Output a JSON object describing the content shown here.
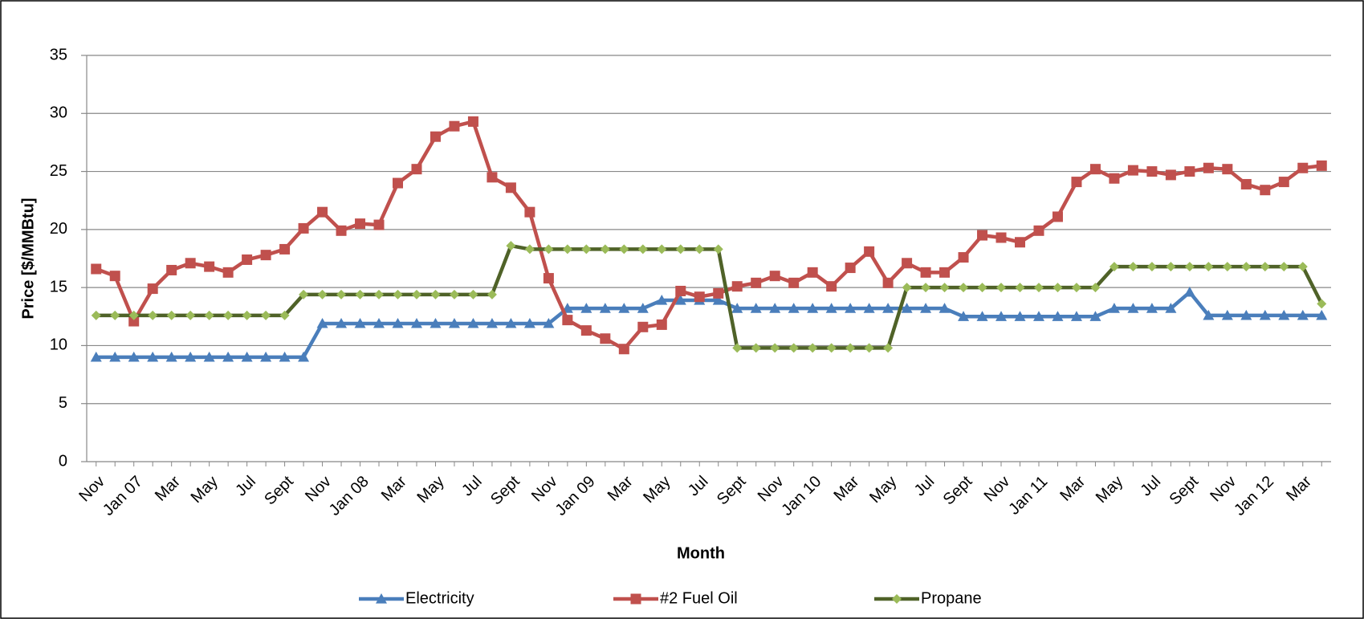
{
  "chart_data": {
    "type": "line",
    "x_label": "Month",
    "y_label": "Price [$/MMBtu]",
    "categories": [
      "Nov",
      null,
      "Jan 07",
      null,
      "Mar",
      null,
      "May",
      null,
      "Jul",
      null,
      "Sept",
      null,
      "Nov",
      null,
      "Jan 08",
      null,
      "Mar",
      null,
      "May",
      null,
      "Jul",
      null,
      "Sept",
      null,
      "Nov",
      null,
      "Jan 09",
      null,
      "Mar",
      null,
      "May",
      null,
      "Jul",
      null,
      "Sept",
      null,
      "Nov",
      null,
      "Jan 10",
      null,
      "Mar",
      null,
      "May",
      null,
      "Jul",
      null,
      "Sept",
      null,
      "Nov",
      null,
      "Jan 11",
      null,
      "Mar",
      null,
      "May",
      null,
      "Jul",
      null,
      "Sept",
      null,
      "Nov",
      null,
      "Jan 12",
      null,
      "Mar",
      null
    ],
    "series": [
      {
        "name": "Electricity",
        "color": "#4a7ebb",
        "marker": "triangle",
        "values": [
          9.0,
          9.0,
          9.0,
          9.0,
          9.0,
          9.0,
          9.0,
          9.0,
          9.0,
          9.0,
          9.0,
          9.0,
          11.9,
          11.9,
          11.9,
          11.9,
          11.9,
          11.9,
          11.9,
          11.9,
          11.9,
          11.9,
          11.9,
          11.9,
          11.9,
          13.2,
          13.2,
          13.2,
          13.2,
          13.2,
          13.9,
          13.9,
          13.9,
          13.9,
          13.2,
          13.2,
          13.2,
          13.2,
          13.2,
          13.2,
          13.2,
          13.2,
          13.2,
          13.2,
          13.2,
          13.2,
          12.5,
          12.5,
          12.5,
          12.5,
          12.5,
          12.5,
          12.5,
          12.5,
          13.2,
          13.2,
          13.2,
          13.2,
          14.6,
          12.6,
          12.6,
          12.6,
          12.6,
          12.6,
          12.6,
          12.6
        ]
      },
      {
        "name": "#2 Fuel Oil",
        "color": "#c0504d",
        "marker": "square",
        "values": [
          16.6,
          16.0,
          12.1,
          14.9,
          16.5,
          17.1,
          16.8,
          16.3,
          17.4,
          17.8,
          18.3,
          20.1,
          21.5,
          19.9,
          20.5,
          20.4,
          24.0,
          25.2,
          28.0,
          28.9,
          29.3,
          24.5,
          23.6,
          21.5,
          15.8,
          12.2,
          11.3,
          10.6,
          9.7,
          11.6,
          11.8,
          14.7,
          14.2,
          14.5,
          15.1,
          15.4,
          16.0,
          15.4,
          16.3,
          15.1,
          16.7,
          18.1,
          15.4,
          17.1,
          16.3,
          16.3,
          17.6,
          19.5,
          19.3,
          18.9,
          19.9,
          21.1,
          24.1,
          25.2,
          24.4,
          25.1,
          25.0,
          24.7,
          25.0,
          25.3,
          25.2,
          23.9,
          23.4,
          24.1,
          25.3,
          25.5
        ]
      },
      {
        "name": "Propane",
        "color": "#4f6228",
        "marker_color": "#9bbb59",
        "marker": "diamond",
        "values": [
          12.6,
          12.6,
          12.6,
          12.6,
          12.6,
          12.6,
          12.6,
          12.6,
          12.6,
          12.6,
          12.6,
          14.4,
          14.4,
          14.4,
          14.4,
          14.4,
          14.4,
          14.4,
          14.4,
          14.4,
          14.4,
          14.4,
          18.6,
          18.3,
          18.3,
          18.3,
          18.3,
          18.3,
          18.3,
          18.3,
          18.3,
          18.3,
          18.3,
          18.3,
          9.8,
          9.8,
          9.8,
          9.8,
          9.8,
          9.8,
          9.8,
          9.8,
          9.8,
          15.0,
          15.0,
          15.0,
          15.0,
          15.0,
          15.0,
          15.0,
          15.0,
          15.0,
          15.0,
          15.0,
          16.8,
          16.8,
          16.8,
          16.8,
          16.8,
          16.8,
          16.8,
          16.8,
          16.8,
          16.8,
          16.8,
          13.6
        ]
      }
    ],
    "ylim": [
      0,
      35
    ],
    "yticks": [
      0,
      5,
      10,
      15,
      20,
      25,
      30,
      35
    ],
    "grid": true,
    "legend": "bottom"
  }
}
